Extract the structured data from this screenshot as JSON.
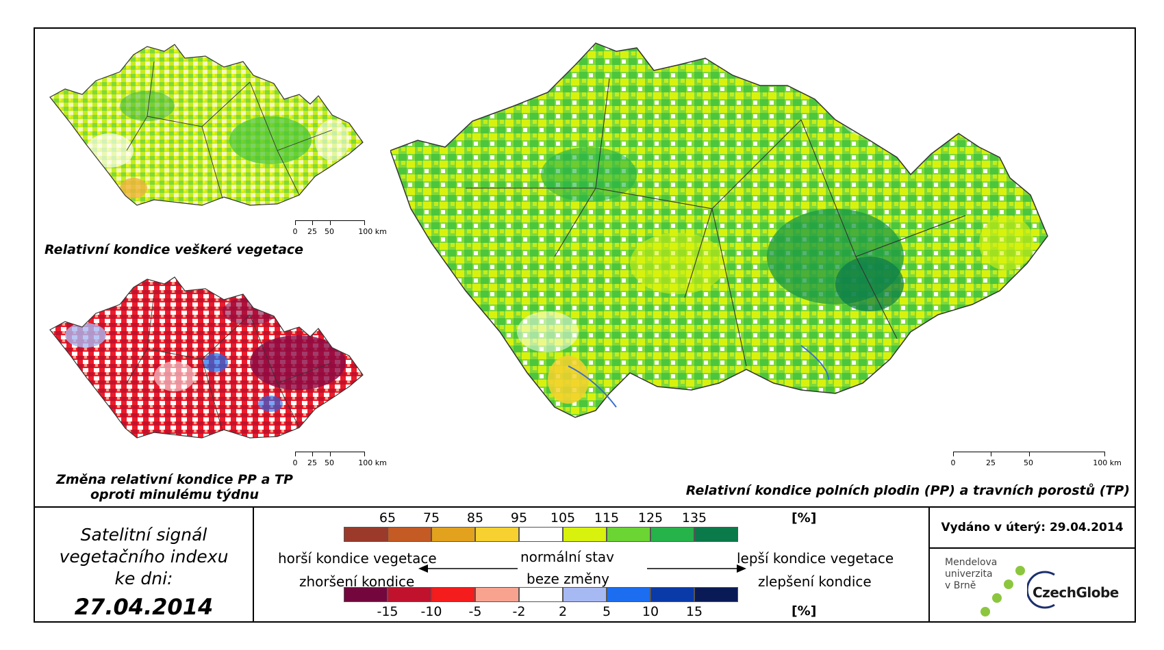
{
  "maps": {
    "overall": {
      "caption": "Relativní kondice veškeré vegetace"
    },
    "change": {
      "caption_line1": "Změna relativní kondice PP a TP",
      "caption_line2": "oproti minulému týdnu"
    },
    "main": {
      "caption": "Relativní kondice polních plodin (PP) a travních porostů (TP)"
    },
    "scalebar": {
      "labels": [
        "0",
        "25",
        "50",
        "100 km"
      ]
    }
  },
  "signal": {
    "line1": "Satelitní signál",
    "line2": "vegetačního indexu",
    "line3": "ke dni:",
    "date": "27.04.2014"
  },
  "legend": {
    "top_ticks": [
      "65",
      "75",
      "85",
      "95",
      "105",
      "115",
      "125",
      "135"
    ],
    "top_unit": "[%]",
    "top_colors": [
      "#9b3a2a",
      "#c45a24",
      "#e3a21e",
      "#f6d12f",
      "#ffffff",
      "#d8f20d",
      "#6ad533",
      "#25b34a",
      "#0a7a4a"
    ],
    "worse_condition": "horší kondice vegetace",
    "worsening": "zhoršení kondice",
    "normal": "normální stav",
    "no_change": "beze změny",
    "better_condition": "lepší kondice vegetace",
    "improvement": "zlepšení kondice",
    "bottom_ticks": [
      "-15",
      "-10",
      "-5",
      "-2",
      "2",
      "5",
      "10",
      "15"
    ],
    "bottom_unit": "[%]",
    "bottom_colors": [
      "#73073d",
      "#c0122d",
      "#f41c1c",
      "#f7a38f",
      "#ffffff",
      "#a7b9f3",
      "#1c6df0",
      "#0a39a8",
      "#0a1a57"
    ]
  },
  "issued": "Vydáno v úterý: 29.04.2014",
  "logos": {
    "mendel_line1": "Mendelova",
    "mendel_line2": "univerzita",
    "mendel_line3": "v Brně",
    "czechglobe": "CzechGlobe"
  }
}
